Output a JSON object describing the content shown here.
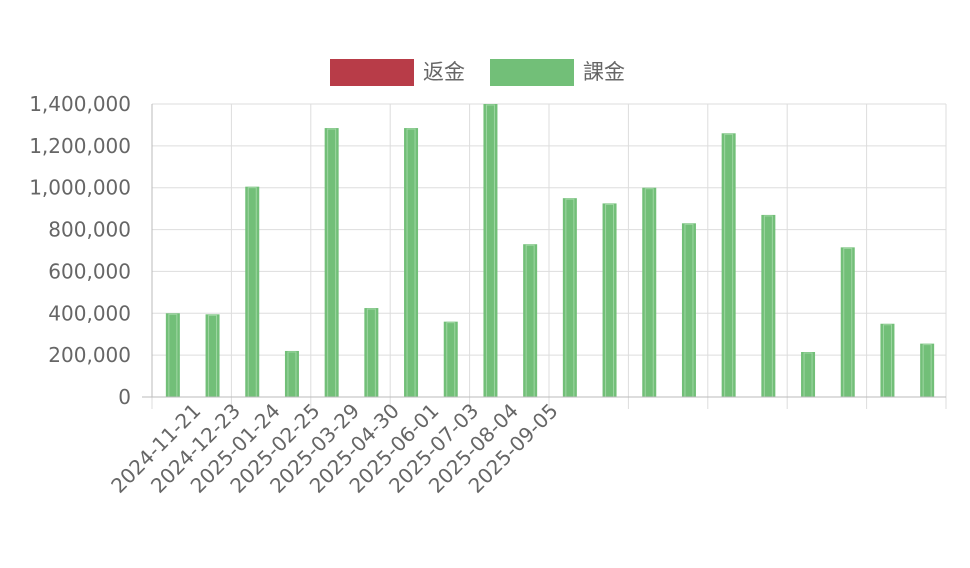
{
  "chart_data": {
    "type": "bar",
    "legend_position": "top",
    "grid": true,
    "x_ticks": [
      "2024-11-21",
      "2024-12-23",
      "2025-01-24",
      "2025-02-25",
      "2025-03-29",
      "2025-04-30",
      "2025-06-01",
      "2025-07-03",
      "2025-08-04",
      "2025-09-05"
    ],
    "y_ticks": [
      "0",
      "200,000",
      "400,000",
      "600,000",
      "800,000",
      "1,000,000",
      "1,200,000",
      "1,400,000"
    ],
    "ylim": [
      0,
      1400000
    ],
    "series": [
      {
        "name": "返金",
        "color": "#b83c48",
        "values": [
          0,
          0,
          0,
          0,
          0,
          0,
          0,
          0,
          0,
          0,
          0,
          0,
          0,
          0,
          0,
          0,
          0,
          0,
          0,
          0
        ]
      },
      {
        "name": "課金",
        "color": "#72bf78",
        "values": [
          400000,
          395000,
          1005000,
          220000,
          1285000,
          425000,
          1285000,
          360000,
          1400000,
          730000,
          950000,
          925000,
          1000000,
          830000,
          1260000,
          870000,
          215000,
          715000,
          350000,
          255000
        ]
      }
    ]
  }
}
